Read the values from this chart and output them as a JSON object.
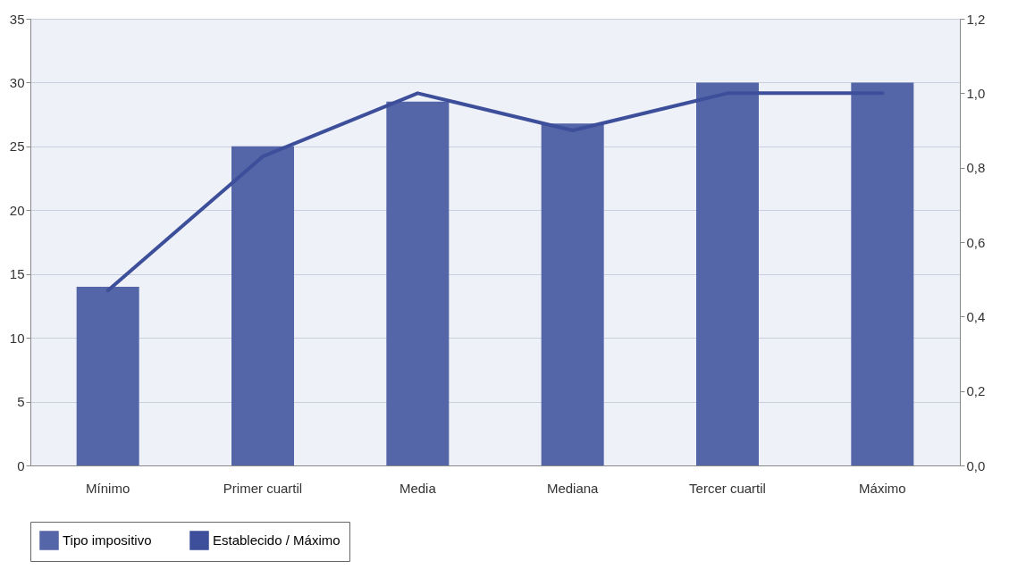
{
  "chart_data": {
    "type": "bar",
    "categories": [
      "Mínimo",
      "Primer cuartil",
      "Media",
      "Mediana",
      "Tercer cuartil",
      "Máximo"
    ],
    "series": [
      {
        "name": "Tipo impositivo",
        "color": "#5566a8",
        "values": [
          14,
          25,
          28.5,
          26.8,
          30,
          30
        ]
      },
      {
        "name": "Establecido / Máximo",
        "type": "line",
        "axis": "y2",
        "color": "#3d4f9a",
        "values": [
          0.47,
          0.83,
          1.0,
          0.9,
          1.0,
          1.0
        ]
      }
    ],
    "ylim": [
      0,
      35
    ],
    "yticks": [
      0,
      5,
      10,
      15,
      20,
      25,
      30,
      35
    ],
    "y2lim": [
      0,
      1.2
    ],
    "y2ticks": [
      {
        "value": 0,
        "label": "0,0"
      },
      {
        "value": 0.2,
        "label": "0,2"
      },
      {
        "value": 0.4,
        "label": "0,4"
      },
      {
        "value": 0.6,
        "label": "0,6"
      },
      {
        "value": 0.8,
        "label": "0,8"
      },
      {
        "value": 1.0,
        "label": "1,0"
      },
      {
        "value": 1.2,
        "label": "1,2"
      }
    ],
    "grid": "y",
    "legend": "bottom",
    "line_style": "solid",
    "marker": "none"
  }
}
